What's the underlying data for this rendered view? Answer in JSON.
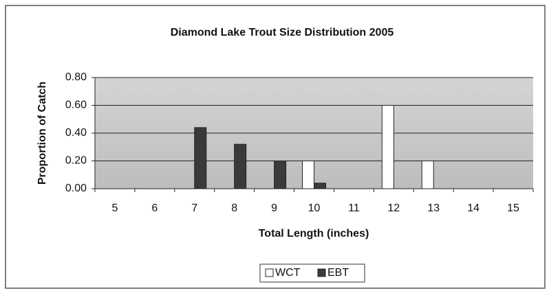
{
  "chart_data": {
    "type": "bar",
    "title": "Diamond Lake Trout Size Distribution 2005",
    "x_label": "Total Length (inches)",
    "y_label": "Proportion of Catch",
    "categories": [
      "5",
      "6",
      "7",
      "8",
      "9",
      "10",
      "11",
      "12",
      "13",
      "14",
      "15"
    ],
    "series": [
      {
        "name": "WCT",
        "color": "#ffffff",
        "values": [
          0,
          0,
          0,
          0,
          0,
          0.2,
          0,
          0.6,
          0.2,
          0,
          0
        ]
      },
      {
        "name": "EBT",
        "color": "#3a3a3a",
        "values": [
          0,
          0,
          0.44,
          0.32,
          0.2,
          0.04,
          0,
          0,
          0,
          0,
          0
        ]
      }
    ],
    "ylim": [
      0,
      0.8
    ],
    "yticks": [
      {
        "value": 0,
        "label": "0.00"
      },
      {
        "value": 0.2,
        "label": "0.20"
      },
      {
        "value": 0.4,
        "label": "0.40"
      },
      {
        "value": 0.6,
        "label": "0.60"
      },
      {
        "value": 0.8,
        "label": "0.80"
      }
    ],
    "grid": true,
    "legend": "bottom"
  }
}
